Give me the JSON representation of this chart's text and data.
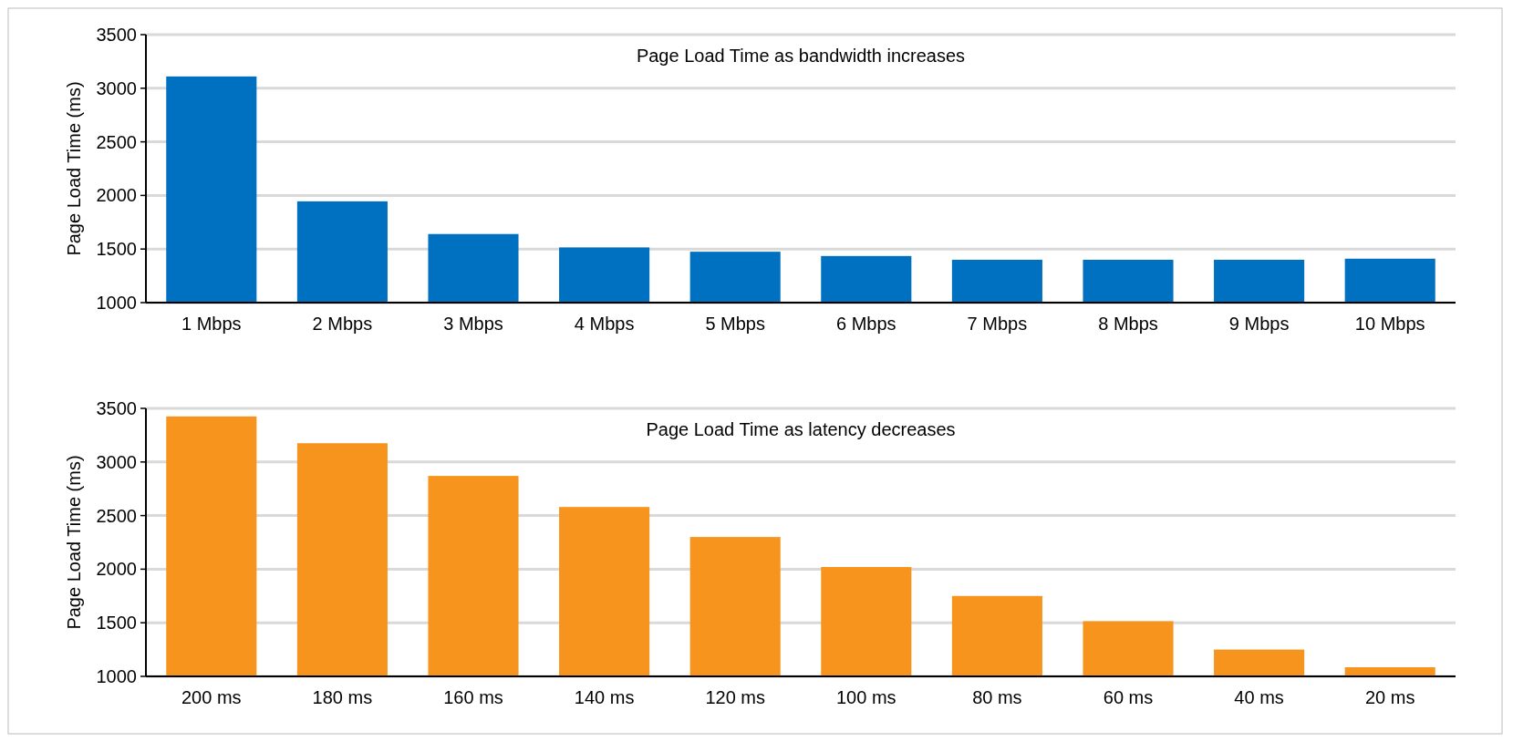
{
  "chart_data": [
    {
      "type": "bar",
      "title": "Page Load Time as bandwidth increases",
      "ylabel": "Page Load Time (ms)",
      "categories": [
        "1 Mbps",
        "2 Mbps",
        "3 Mbps",
        "4 Mbps",
        "5 Mbps",
        "6 Mbps",
        "7 Mbps",
        "8 Mbps",
        "9 Mbps",
        "10 Mbps"
      ],
      "values": [
        3110,
        1945,
        1640,
        1515,
        1475,
        1435,
        1400,
        1400,
        1400,
        1410
      ],
      "color": "#0070c0",
      "ylim": [
        1000,
        3500
      ],
      "yticks": [
        1000,
        1500,
        2000,
        2500,
        3000,
        3500
      ],
      "grid": "y"
    },
    {
      "type": "bar",
      "title": "Page Load Time as latency decreases",
      "ylabel": "Page Load Time (ms)",
      "categories": [
        "200 ms",
        "180 ms",
        "160 ms",
        "140 ms",
        "120 ms",
        "100 ms",
        "80 ms",
        "60 ms",
        "40 ms",
        "20 ms"
      ],
      "values": [
        3425,
        3175,
        2870,
        2580,
        2300,
        2020,
        1750,
        1515,
        1250,
        1085
      ],
      "color": "#f7941d",
      "ylim": [
        1000,
        3500
      ],
      "yticks": [
        1000,
        1500,
        2000,
        2500,
        3000,
        3500
      ],
      "grid": "y"
    }
  ]
}
